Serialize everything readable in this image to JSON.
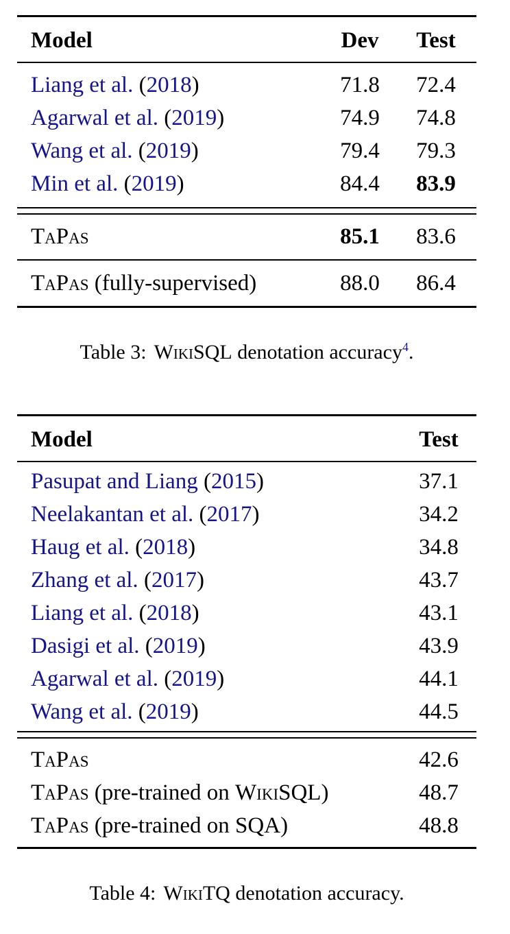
{
  "colors": {
    "citation": "#14148c",
    "text": "#000000"
  },
  "punct": {
    "open": " (",
    "close": ")"
  },
  "table3": {
    "header": {
      "model": "Model",
      "dev": "Dev",
      "test": "Test"
    },
    "rows": [
      {
        "authors": "Liang et al.",
        "year": "2018",
        "dev": "71.8",
        "test": "72.4"
      },
      {
        "authors": "Agarwal et al.",
        "year": "2019",
        "dev": "74.9",
        "test": "74.8"
      },
      {
        "authors": "Wang et al.",
        "year": "2019",
        "dev": "79.4",
        "test": "79.3"
      },
      {
        "authors": "Min et al.",
        "year": "2019",
        "dev": "84.4",
        "test": "83.9"
      }
    ],
    "tapas": {
      "name": "TaPas",
      "dev": "85.1",
      "test": "83.6"
    },
    "fully": {
      "name": "TaPas",
      "suffix": " (fully-supervised)",
      "dev": "88.0",
      "test": "86.4"
    },
    "caption": {
      "prefix": "Table 3:",
      "sc": "WikiSQL",
      "rest": " denotation accuracy",
      "footnote": "4",
      "end": "."
    }
  },
  "table4": {
    "header": {
      "model": "Model",
      "test": "Test"
    },
    "rows": [
      {
        "authors": "Pasupat and Liang",
        "year": "2015",
        "test": "37.1"
      },
      {
        "authors": "Neelakantan et al.",
        "year": "2017",
        "test": "34.2"
      },
      {
        "authors": "Haug et al.",
        "year": "2018",
        "test": "34.8"
      },
      {
        "authors": "Zhang et al.",
        "year": "2017",
        "test": "43.7"
      },
      {
        "authors": "Liang et al.",
        "year": "2018",
        "test": "43.1"
      },
      {
        "authors": "Dasigi et al.",
        "year": "2019",
        "test": "43.9"
      },
      {
        "authors": "Agarwal et al.",
        "year": "2019",
        "test": "44.1"
      },
      {
        "authors": "Wang et al.",
        "year": "2019",
        "test": "44.5"
      }
    ],
    "tapas_rows": [
      {
        "name": "TaPas",
        "pre": "",
        "sc": "",
        "post": "",
        "test": "42.6"
      },
      {
        "name": "TaPas",
        "pre": " (pre-trained on ",
        "sc": "WikiSQL",
        "post": ")",
        "test": "48.7"
      },
      {
        "name": "TaPas",
        "pre": " (pre-trained on ",
        "sc": "SQA",
        "post": ")",
        "test": "48.8"
      }
    ],
    "caption": {
      "prefix": "Table 4:",
      "sc": "WikiTQ",
      "rest": " denotation accuracy."
    }
  }
}
